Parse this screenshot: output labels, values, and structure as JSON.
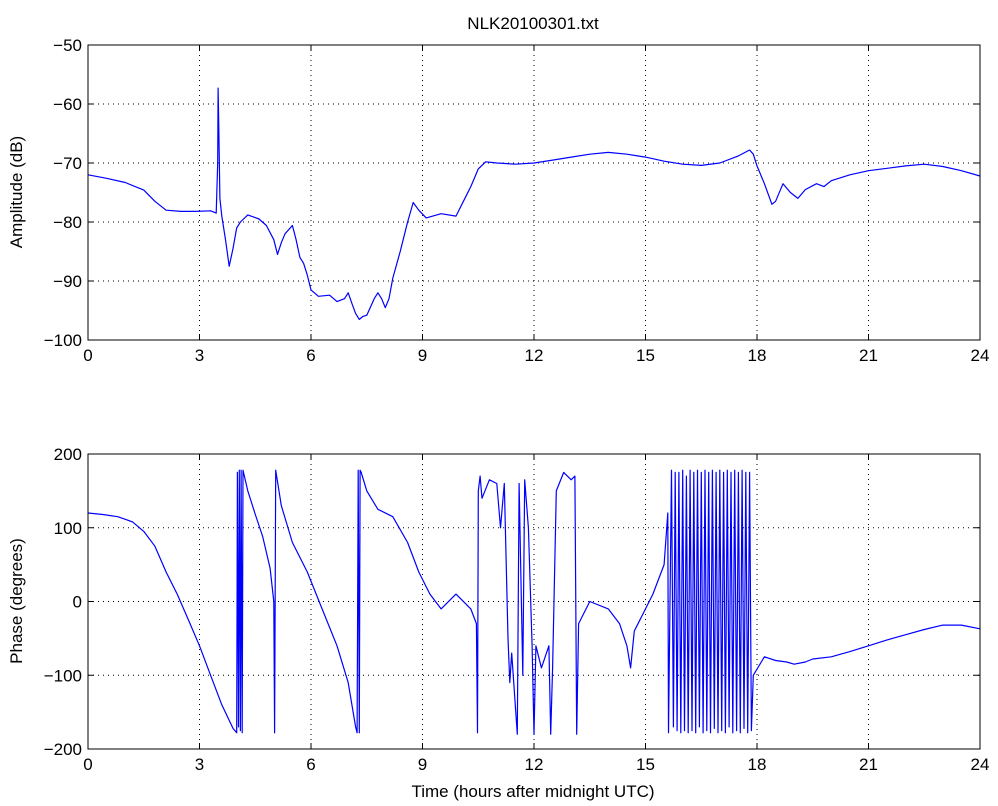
{
  "figure": {
    "background": "#ffffff",
    "line_color": "#0000ff",
    "grid_color": "#000000"
  },
  "chart_data": [
    {
      "type": "line",
      "title": "NLK20100301.txt",
      "xlabel": "",
      "ylabel": "Amplitude (dB)",
      "xlim": [
        0,
        24
      ],
      "ylim": [
        -100,
        -50
      ],
      "xticks": [
        "0",
        "3",
        "6",
        "9",
        "12",
        "15",
        "18",
        "21",
        "24"
      ],
      "yticks": [
        "−50",
        "−60",
        "−70",
        "−80",
        "−90",
        "−100"
      ],
      "ytick_values": [
        -50,
        -60,
        -70,
        -80,
        -90,
        -100
      ],
      "grid": true,
      "series": [
        {
          "color": "#0000ff",
          "points": [
            [
              0,
              -72
            ],
            [
              0.5,
              -72.6
            ],
            [
              1,
              -73.3
            ],
            [
              1.5,
              -74.6
            ],
            [
              1.8,
              -76.5
            ],
            [
              2.1,
              -78
            ],
            [
              2.5,
              -78.2
            ],
            [
              2.9,
              -78.2
            ],
            [
              3.3,
              -78.1
            ],
            [
              3.45,
              -78.5
            ],
            [
              3.49,
              -70
            ],
            [
              3.5,
              -57.3
            ],
            [
              3.52,
              -64
            ],
            [
              3.55,
              -76
            ],
            [
              3.6,
              -79
            ],
            [
              3.7,
              -83
            ],
            [
              3.8,
              -87.5
            ],
            [
              3.9,
              -84.5
            ],
            [
              4,
              -81
            ],
            [
              4.1,
              -80
            ],
            [
              4.3,
              -78.8
            ],
            [
              4.6,
              -79.5
            ],
            [
              4.8,
              -80.6
            ],
            [
              5,
              -83
            ],
            [
              5.1,
              -85.5
            ],
            [
              5.2,
              -83.5
            ],
            [
              5.3,
              -82
            ],
            [
              5.5,
              -80.6
            ],
            [
              5.6,
              -83
            ],
            [
              5.7,
              -86
            ],
            [
              5.8,
              -87
            ],
            [
              5.9,
              -89
            ],
            [
              6,
              -91.5
            ],
            [
              6.2,
              -92.6
            ],
            [
              6.5,
              -92.4
            ],
            [
              6.7,
              -93.5
            ],
            [
              6.9,
              -93
            ],
            [
              7.0,
              -92
            ],
            [
              7.1,
              -93.8
            ],
            [
              7.2,
              -95.5
            ],
            [
              7.3,
              -96.5
            ],
            [
              7.4,
              -96
            ],
            [
              7.5,
              -95.8
            ],
            [
              7.7,
              -93
            ],
            [
              7.8,
              -92
            ],
            [
              7.9,
              -93
            ],
            [
              8.0,
              -94.5
            ],
            [
              8.1,
              -93
            ],
            [
              8.2,
              -89.5
            ],
            [
              8.4,
              -85
            ],
            [
              8.5,
              -82.5
            ],
            [
              8.6,
              -80
            ],
            [
              8.75,
              -76.7
            ],
            [
              8.9,
              -78
            ],
            [
              9.1,
              -79.3
            ],
            [
              9.5,
              -78.6
            ],
            [
              9.9,
              -79
            ],
            [
              10.1,
              -76.5
            ],
            [
              10.3,
              -74
            ],
            [
              10.5,
              -71
            ],
            [
              10.7,
              -69.8
            ],
            [
              11,
              -70
            ],
            [
              11.5,
              -70.2
            ],
            [
              12,
              -70
            ],
            [
              12.5,
              -69.5
            ],
            [
              13,
              -69
            ],
            [
              13.5,
              -68.5
            ],
            [
              14,
              -68.2
            ],
            [
              14.5,
              -68.5
            ],
            [
              15,
              -69
            ],
            [
              15.5,
              -69.7
            ],
            [
              16,
              -70.2
            ],
            [
              16.5,
              -70.4
            ],
            [
              17,
              -70
            ],
            [
              17.5,
              -68.8
            ],
            [
              17.8,
              -67.8
            ],
            [
              17.9,
              -68.5
            ],
            [
              18.0,
              -70.5
            ],
            [
              18.2,
              -73.5
            ],
            [
              18.4,
              -77
            ],
            [
              18.5,
              -76.5
            ],
            [
              18.7,
              -73.5
            ],
            [
              18.9,
              -75
            ],
            [
              19.1,
              -76
            ],
            [
              19.3,
              -74.5
            ],
            [
              19.6,
              -73.5
            ],
            [
              19.8,
              -74
            ],
            [
              20,
              -73
            ],
            [
              20.5,
              -72
            ],
            [
              21,
              -71.3
            ],
            [
              21.5,
              -70.9
            ],
            [
              22,
              -70.5
            ],
            [
              22.5,
              -70.2
            ],
            [
              23,
              -70.6
            ],
            [
              23.5,
              -71.3
            ],
            [
              24,
              -72.2
            ]
          ]
        }
      ]
    },
    {
      "type": "line",
      "title": "",
      "xlabel": "Time (hours after midnight UTC)",
      "ylabel": "Phase (degrees)",
      "xlim": [
        0,
        24
      ],
      "ylim": [
        -200,
        200
      ],
      "xticks": [
        "0",
        "3",
        "6",
        "9",
        "12",
        "15",
        "18",
        "21",
        "24"
      ],
      "yticks": [
        "200",
        "100",
        "0",
        "−100",
        "−200"
      ],
      "ytick_values": [
        200,
        100,
        0,
        -100,
        -200
      ],
      "grid": true,
      "series": [
        {
          "color": "#0000ff",
          "points": [
            [
              0,
              120
            ],
            [
              0.4,
              118
            ],
            [
              0.8,
              115
            ],
            [
              1.2,
              108
            ],
            [
              1.5,
              95
            ],
            [
              1.8,
              75
            ],
            [
              2.1,
              40
            ],
            [
              2.4,
              10
            ],
            [
              2.7,
              -25
            ],
            [
              3.0,
              -60
            ],
            [
              3.3,
              -100
            ],
            [
              3.6,
              -140
            ],
            [
              3.9,
              -172
            ],
            [
              4.0,
              -178
            ],
            [
              4.02,
              175
            ],
            [
              4.05,
              -170
            ],
            [
              4.07,
              178
            ],
            [
              4.1,
              -175
            ],
            [
              4.12,
              178
            ],
            [
              4.15,
              -178
            ],
            [
              4.17,
              178
            ],
            [
              4.3,
              150
            ],
            [
              4.5,
              118
            ],
            [
              4.7,
              88
            ],
            [
              4.9,
              45
            ],
            [
              5.0,
              0
            ],
            [
              5.02,
              -178
            ],
            [
              5.05,
              178
            ],
            [
              5.2,
              130
            ],
            [
              5.5,
              80
            ],
            [
              5.9,
              40
            ],
            [
              6.3,
              -10
            ],
            [
              6.7,
              -60
            ],
            [
              7.0,
              -110
            ],
            [
              7.2,
              -170
            ],
            [
              7.24,
              -178
            ],
            [
              7.27,
              178
            ],
            [
              7.3,
              -178
            ],
            [
              7.32,
              178
            ],
            [
              7.35,
              175
            ],
            [
              7.5,
              150
            ],
            [
              7.8,
              125
            ],
            [
              8.2,
              115
            ],
            [
              8.6,
              80
            ],
            [
              8.9,
              40
            ],
            [
              9.2,
              10
            ],
            [
              9.5,
              -10
            ],
            [
              9.9,
              10
            ],
            [
              10.3,
              -10
            ],
            [
              10.45,
              -30
            ],
            [
              10.48,
              -178
            ],
            [
              10.5,
              150
            ],
            [
              10.55,
              170
            ],
            [
              10.6,
              140
            ],
            [
              10.8,
              165
            ],
            [
              11.0,
              160
            ],
            [
              11.1,
              100
            ],
            [
              11.2,
              160
            ],
            [
              11.3,
              -50
            ],
            [
              11.35,
              -110
            ],
            [
              11.4,
              -70
            ],
            [
              11.55,
              -180
            ],
            [
              11.6,
              160
            ],
            [
              11.7,
              -100
            ],
            [
              11.75,
              165
            ],
            [
              11.85,
              100
            ],
            [
              11.95,
              -60
            ],
            [
              12.0,
              -180
            ],
            [
              12.05,
              -60
            ],
            [
              12.2,
              -90
            ],
            [
              12.4,
              -60
            ],
            [
              12.45,
              -180
            ],
            [
              12.5,
              -90
            ],
            [
              12.6,
              150
            ],
            [
              12.8,
              175
            ],
            [
              13.0,
              165
            ],
            [
              13.1,
              170
            ],
            [
              13.15,
              -180
            ],
            [
              13.2,
              -30
            ],
            [
              13.5,
              0
            ],
            [
              14.0,
              -10
            ],
            [
              14.3,
              -30
            ],
            [
              14.5,
              -60
            ],
            [
              14.6,
              -90
            ],
            [
              14.7,
              -40
            ],
            [
              15.0,
              -10
            ],
            [
              15.2,
              10
            ],
            [
              15.5,
              50
            ],
            [
              15.6,
              120
            ],
            [
              15.62,
              -178
            ],
            [
              15.7,
              178
            ],
            [
              15.75,
              -170
            ],
            [
              15.8,
              175
            ],
            [
              15.85,
              -175
            ],
            [
              15.9,
              175
            ],
            [
              15.95,
              -178
            ],
            [
              16.0,
              178
            ],
            [
              16.05,
              -175
            ],
            [
              16.1,
              170
            ],
            [
              16.15,
              -178
            ],
            [
              16.2,
              178
            ],
            [
              16.25,
              -175
            ],
            [
              16.3,
              175
            ],
            [
              16.35,
              -178
            ],
            [
              16.4,
              178
            ],
            [
              16.45,
              -170
            ],
            [
              16.5,
              175
            ],
            [
              16.55,
              -178
            ],
            [
              16.6,
              178
            ],
            [
              16.65,
              -175
            ],
            [
              16.7,
              175
            ],
            [
              16.75,
              -178
            ],
            [
              16.8,
              178
            ],
            [
              16.85,
              -172
            ],
            [
              16.9,
              175
            ],
            [
              16.95,
              -178
            ],
            [
              17.0,
              178
            ],
            [
              17.05,
              -175
            ],
            [
              17.1,
              175
            ],
            [
              17.15,
              -178
            ],
            [
              17.2,
              178
            ],
            [
              17.25,
              -170
            ],
            [
              17.3,
              175
            ],
            [
              17.35,
              -178
            ],
            [
              17.4,
              178
            ],
            [
              17.45,
              -175
            ],
            [
              17.5,
              175
            ],
            [
              17.55,
              -178
            ],
            [
              17.6,
              178
            ],
            [
              17.65,
              -172
            ],
            [
              17.7,
              175
            ],
            [
              17.75,
              -178
            ],
            [
              17.8,
              175
            ],
            [
              17.85,
              -175
            ],
            [
              17.9,
              -100
            ],
            [
              18.2,
              -75
            ],
            [
              18.5,
              -80
            ],
            [
              18.8,
              -82
            ],
            [
              19.0,
              -85
            ],
            [
              19.3,
              -82
            ],
            [
              19.5,
              -78
            ],
            [
              20.0,
              -75
            ],
            [
              20.5,
              -68
            ],
            [
              21.0,
              -60
            ],
            [
              21.5,
              -52
            ],
            [
              22.0,
              -45
            ],
            [
              22.5,
              -38
            ],
            [
              23.0,
              -32
            ],
            [
              23.5,
              -32
            ],
            [
              24.0,
              -37
            ]
          ]
        }
      ]
    }
  ]
}
